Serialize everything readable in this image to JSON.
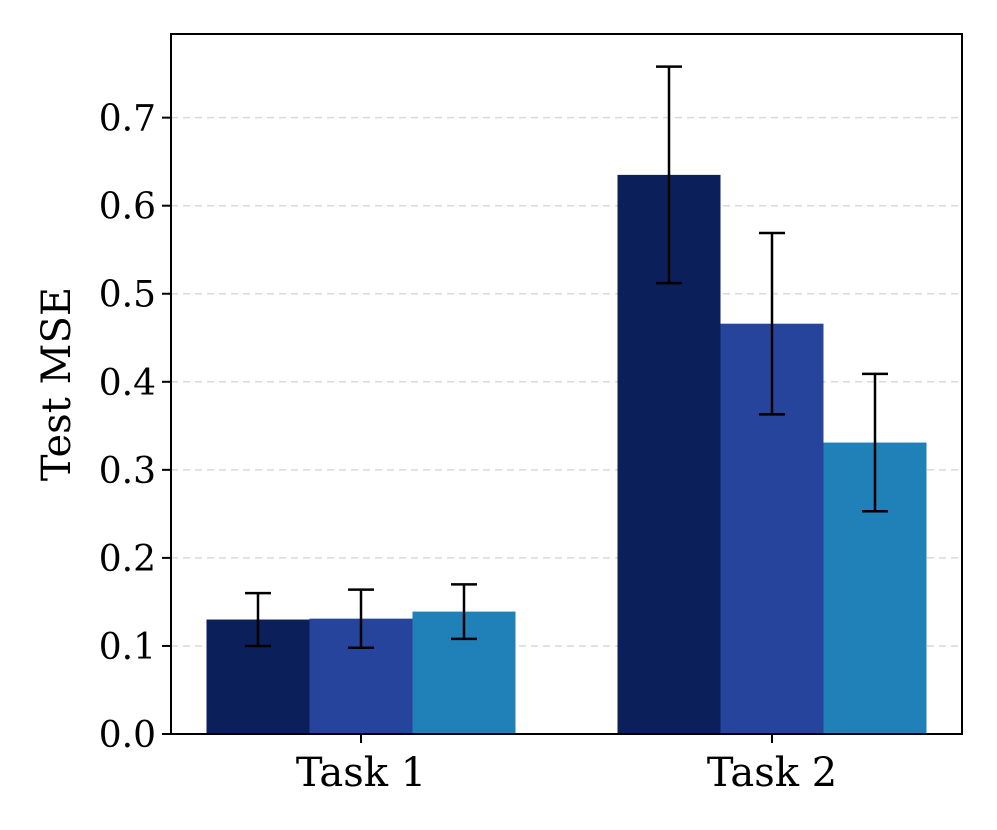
{
  "chart_data": {
    "type": "bar",
    "categories": [
      "Task 1",
      "Task 2"
    ],
    "series": [
      {
        "values": [
          0.13,
          0.635
        ],
        "errors": [
          0.03,
          0.123
        ],
        "color": "#0b1f5b"
      },
      {
        "values": [
          0.131,
          0.466
        ],
        "errors": [
          0.033,
          0.103
        ],
        "color": "#27449c"
      },
      {
        "values": [
          0.139,
          0.331
        ],
        "errors": [
          0.031,
          0.078
        ],
        "color": "#2081b9"
      }
    ],
    "xlabel": "",
    "ylabel": "Test MSE",
    "ylim": [
      0,
      0.795
    ],
    "yticks": [
      0.0,
      0.1,
      0.2,
      0.3,
      0.4,
      0.5,
      0.6,
      0.7
    ],
    "ytick_labels": [
      "0.0",
      "0.1",
      "0.2",
      "0.3",
      "0.4",
      "0.5",
      "0.6",
      "0.7"
    ],
    "grid": "y-dashed",
    "legend": "none"
  }
}
